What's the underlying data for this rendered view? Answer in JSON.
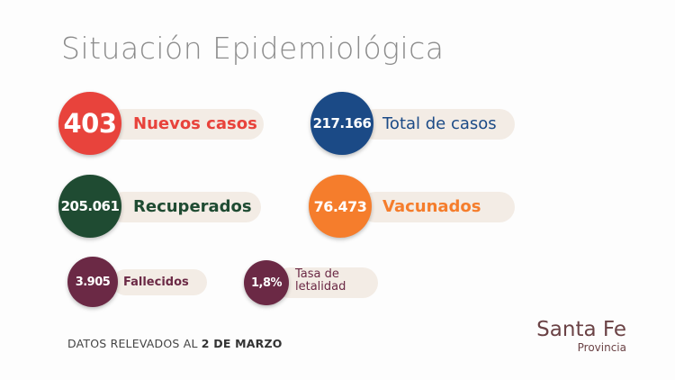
{
  "title": "Situación Epidemiológica",
  "stats": [
    {
      "value": "403",
      "label": "Nuevos casos",
      "color": "#e8433c"
    },
    {
      "value": "217.166",
      "label": "Total de casos",
      "color": "#1b4a86"
    },
    {
      "value": "205.061",
      "label": "Recuperados",
      "color": "#1f4b32"
    },
    {
      "value": "76.473",
      "label": "Vacunados",
      "color": "#f57d2c"
    },
    {
      "value": "3.905",
      "label": "Fallecidos",
      "color": "#6b2945"
    },
    {
      "value": "1,8%",
      "label_line1": "Tasa de",
      "label_line2": "letalidad",
      "color": "#6b2945"
    }
  ],
  "footer": {
    "prefix": "DATOS RELEVADOS AL",
    "date": "2 DE MARZO"
  },
  "logo": {
    "name": "Santa Fe",
    "subtitle": "Provincia"
  }
}
